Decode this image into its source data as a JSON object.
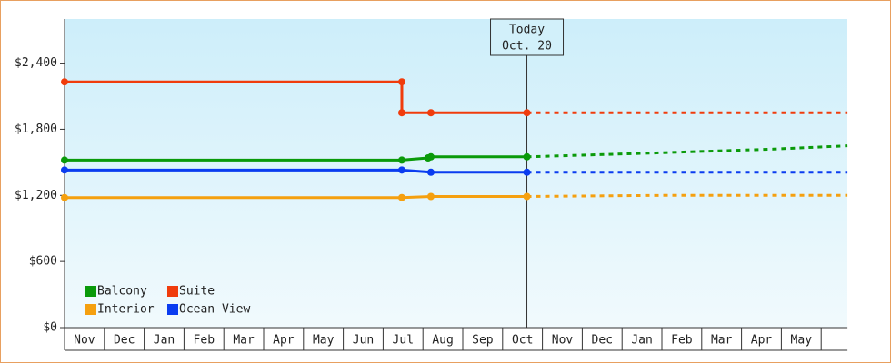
{
  "chart_data": {
    "type": "line",
    "categories": [
      "Nov",
      "Dec",
      "Jan",
      "Feb",
      "Mar",
      "Apr",
      "May",
      "Jun",
      "Jul",
      "Aug",
      "Sep",
      "Oct",
      "Nov",
      "Dec",
      "Jan",
      "Feb",
      "Mar",
      "Apr",
      "May"
    ],
    "xlim": [
      0,
      19.66
    ],
    "ylim": [
      0,
      2800
    ],
    "yticks": [
      {
        "value": 0,
        "label": "$0"
      },
      {
        "value": 600,
        "label": "$600"
      },
      {
        "value": 1200,
        "label": "$1,200"
      },
      {
        "value": 1800,
        "label": "$1,800"
      },
      {
        "value": 2400,
        "label": "$2,400"
      }
    ],
    "annotation": {
      "x": 11.61,
      "lines": [
        "Today",
        "Oct. 20"
      ]
    },
    "series": [
      {
        "name": "Balcony",
        "color": "#0a9a0a",
        "x": [
          0,
          8.47,
          9.13,
          9.2,
          11.61
        ],
        "values": [
          1520,
          1520,
          1540,
          1550,
          1550
        ],
        "forecast": {
          "x": [
            11.61,
            14.4,
            17.8,
            19.66
          ],
          "values": [
            1550,
            1580,
            1620,
            1650
          ]
        }
      },
      {
        "name": "Suite",
        "color": "#f03c0c",
        "x": [
          0,
          8.47,
          8.47,
          9.2,
          11.61
        ],
        "values": [
          2230,
          2230,
          1950,
          1950,
          1950
        ],
        "forecast": {
          "x": [
            11.61,
            19.66
          ],
          "values": [
            1950,
            1950
          ]
        }
      },
      {
        "name": "Interior",
        "color": "#f5a00f",
        "x": [
          0,
          8.47,
          9.2,
          11.61
        ],
        "values": [
          1180,
          1180,
          1190,
          1190
        ],
        "forecast": {
          "x": [
            11.61,
            15.0,
            19.66
          ],
          "values": [
            1190,
            1200,
            1200
          ]
        }
      },
      {
        "name": "Ocean View",
        "color": "#0a3cf0",
        "x": [
          0,
          8.47,
          9.2,
          11.61
        ],
        "values": [
          1430,
          1430,
          1410,
          1410
        ],
        "forecast": {
          "x": [
            11.61,
            19.66
          ],
          "values": [
            1410,
            1410
          ]
        }
      }
    ]
  }
}
